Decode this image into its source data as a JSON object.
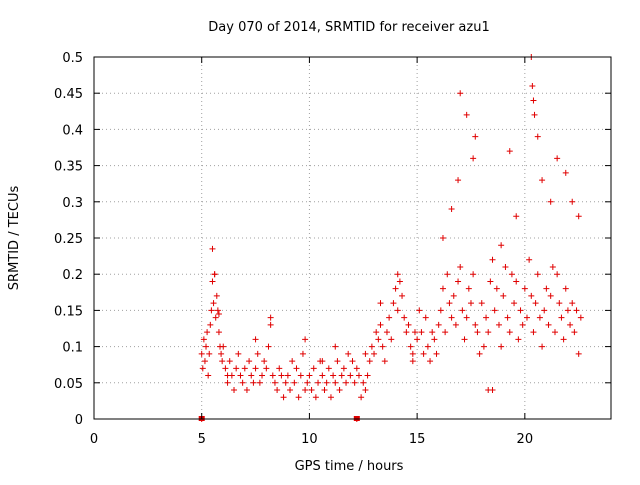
{
  "chart_data": {
    "type": "scatter",
    "title": "Day 070 of 2014, SRMTID for receiver azu1",
    "xlabel": "GPS time / hours",
    "ylabel": "SRMTID / TECUs",
    "xlim": [
      0,
      24
    ],
    "ylim": [
      0,
      0.5
    ],
    "xticks": [
      0,
      5,
      10,
      15,
      20
    ],
    "yticks": [
      0,
      0.05,
      0.1,
      0.15,
      0.2,
      0.25,
      0.3,
      0.35,
      0.4,
      0.45,
      0.5
    ],
    "xtick_labels": [
      "0",
      "5",
      "10",
      "15",
      "20"
    ],
    "ytick_labels": [
      "0",
      "0.05",
      "0.1",
      "0.15",
      "0.2",
      "0.25",
      "0.3",
      "0.35",
      "0.4",
      "0.45",
      "0.5"
    ],
    "grid": true,
    "marker": "plus",
    "color": "#e00000",
    "series": [
      {
        "name": "SRMTID",
        "x": [
          5.0,
          5.05,
          5.1,
          5.15,
          5.2,
          5.25,
          5.3,
          5.35,
          5.4,
          5.45,
          5.5,
          5.55,
          5.6,
          5.65,
          5.7,
          5.75,
          5.8,
          5.85,
          5.9,
          5.95,
          6.0,
          6.1,
          6.2,
          6.3,
          6.4,
          6.5,
          6.6,
          6.7,
          6.8,
          6.9,
          7.0,
          7.1,
          7.2,
          7.3,
          7.4,
          7.5,
          7.6,
          7.7,
          7.8,
          7.9,
          8.0,
          8.1,
          8.2,
          8.3,
          8.4,
          8.5,
          8.6,
          8.7,
          8.8,
          8.9,
          9.0,
          9.1,
          9.2,
          9.3,
          9.4,
          9.5,
          9.6,
          9.7,
          9.8,
          9.9,
          10.0,
          10.1,
          10.2,
          10.3,
          10.4,
          10.5,
          10.6,
          10.7,
          10.8,
          10.9,
          11.0,
          11.1,
          11.2,
          11.3,
          11.4,
          11.5,
          11.6,
          11.7,
          11.8,
          11.9,
          12.0,
          12.1,
          12.2,
          12.3,
          12.4,
          12.5,
          12.6,
          12.7,
          12.8,
          12.9,
          13.0,
          13.1,
          13.2,
          13.3,
          13.4,
          13.5,
          13.6,
          13.7,
          13.8,
          13.9,
          14.0,
          14.1,
          14.2,
          14.3,
          14.4,
          14.5,
          14.6,
          14.7,
          14.8,
          14.9,
          15.0,
          15.1,
          15.2,
          15.3,
          15.4,
          15.5,
          15.6,
          15.7,
          15.8,
          15.9,
          16.0,
          16.1,
          16.2,
          16.3,
          16.4,
          16.5,
          16.6,
          16.7,
          16.8,
          16.9,
          17.0,
          17.1,
          17.2,
          17.3,
          17.4,
          17.5,
          17.6,
          17.7,
          17.8,
          17.9,
          18.0,
          18.1,
          18.2,
          18.3,
          18.4,
          18.5,
          18.6,
          18.7,
          18.8,
          18.9,
          19.0,
          19.1,
          19.2,
          19.3,
          19.4,
          19.5,
          19.6,
          19.7,
          19.8,
          19.9,
          20.0,
          20.1,
          20.2,
          20.3,
          20.4,
          20.5,
          20.6,
          20.7,
          20.8,
          20.9,
          21.0,
          21.1,
          21.2,
          21.3,
          21.4,
          21.5,
          21.6,
          21.7,
          21.8,
          21.9,
          22.0,
          22.1,
          22.2,
          22.3,
          22.4,
          22.5,
          22.6,
          5.5,
          5.6,
          5.8,
          6.2,
          7.5,
          8.2,
          9.8,
          10.6,
          11.2,
          12.6,
          13.3,
          14.1,
          14.8,
          16.2,
          16.6,
          16.9,
          17.3,
          17.7,
          18.3,
          18.9,
          19.3,
          19.6,
          20.3,
          20.35,
          20.4,
          20.45,
          20.6,
          20.8,
          21.2,
          21.5,
          21.9,
          22.2,
          22.5,
          5.0,
          12.2,
          17.0,
          17.6,
          18.5
        ],
        "y": [
          0.09,
          0.07,
          0.11,
          0.08,
          0.1,
          0.12,
          0.06,
          0.09,
          0.13,
          0.15,
          0.19,
          0.16,
          0.2,
          0.14,
          0.17,
          0.15,
          0.12,
          0.1,
          0.09,
          0.08,
          0.1,
          0.07,
          0.05,
          0.08,
          0.06,
          0.04,
          0.07,
          0.09,
          0.06,
          0.05,
          0.07,
          0.04,
          0.08,
          0.06,
          0.05,
          0.07,
          0.09,
          0.05,
          0.06,
          0.08,
          0.07,
          0.1,
          0.13,
          0.06,
          0.05,
          0.04,
          0.07,
          0.06,
          0.03,
          0.05,
          0.06,
          0.04,
          0.08,
          0.05,
          0.07,
          0.03,
          0.06,
          0.09,
          0.04,
          0.05,
          0.06,
          0.04,
          0.07,
          0.03,
          0.05,
          0.08,
          0.06,
          0.04,
          0.05,
          0.07,
          0.03,
          0.06,
          0.05,
          0.08,
          0.04,
          0.06,
          0.07,
          0.05,
          0.09,
          0.06,
          0.08,
          0.05,
          0.07,
          0.06,
          0.03,
          0.05,
          0.04,
          0.06,
          0.08,
          0.1,
          0.09,
          0.12,
          0.11,
          0.13,
          0.1,
          0.08,
          0.12,
          0.14,
          0.11,
          0.16,
          0.18,
          0.15,
          0.19,
          0.17,
          0.14,
          0.12,
          0.13,
          0.1,
          0.09,
          0.12,
          0.11,
          0.15,
          0.12,
          0.09,
          0.14,
          0.1,
          0.08,
          0.12,
          0.11,
          0.09,
          0.13,
          0.15,
          0.18,
          0.12,
          0.2,
          0.16,
          0.14,
          0.17,
          0.13,
          0.19,
          0.21,
          0.15,
          0.11,
          0.14,
          0.18,
          0.16,
          0.2,
          0.13,
          0.12,
          0.09,
          0.16,
          0.1,
          0.14,
          0.12,
          0.19,
          0.22,
          0.15,
          0.18,
          0.13,
          0.1,
          0.17,
          0.21,
          0.14,
          0.12,
          0.2,
          0.16,
          0.19,
          0.11,
          0.15,
          0.13,
          0.18,
          0.14,
          0.22,
          0.17,
          0.12,
          0.16,
          0.2,
          0.14,
          0.1,
          0.15,
          0.18,
          0.13,
          0.17,
          0.21,
          0.12,
          0.2,
          0.16,
          0.14,
          0.11,
          0.18,
          0.15,
          0.13,
          0.16,
          0.12,
          0.15,
          0.09,
          0.14,
          0.235,
          0.2,
          0.145,
          0.06,
          0.11,
          0.14,
          0.11,
          0.08,
          0.1,
          0.09,
          0.16,
          0.2,
          0.08,
          0.25,
          0.29,
          0.33,
          0.42,
          0.39,
          0.04,
          0.24,
          0.37,
          0.28,
          0.5,
          0.46,
          0.44,
          0.42,
          0.39,
          0.33,
          0.3,
          0.36,
          0.34,
          0.3,
          0.28,
          0.0,
          0.0,
          0.45,
          0.36,
          0.04
        ]
      }
    ],
    "zero_markers": [
      5.0,
      12.2
    ]
  }
}
